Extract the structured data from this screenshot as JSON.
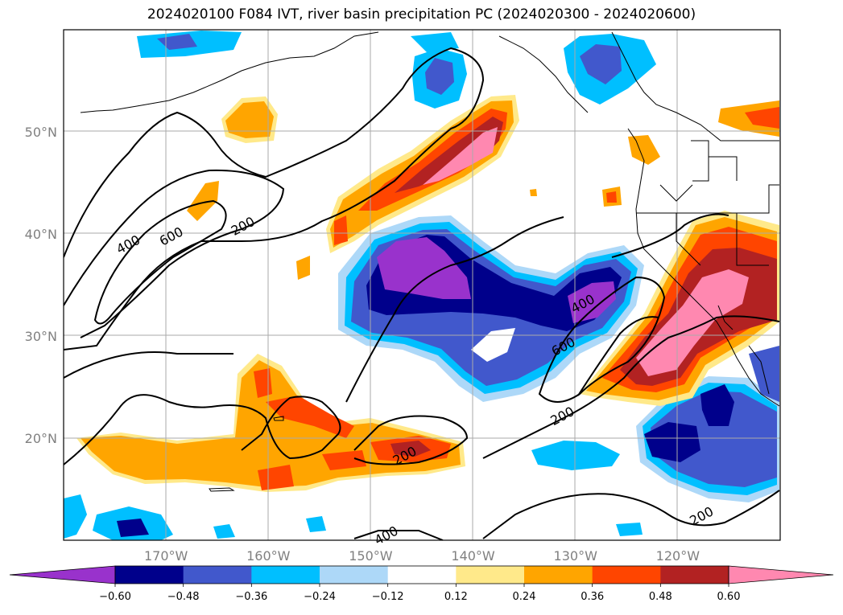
{
  "title": "2024020100 F084 IVT, river basin precipitation PC (2024020300 - 2024020600)",
  "map": {
    "projection": "plate-carree",
    "region": "North Pacific / western North America",
    "lon_range": [
      -180,
      -110
    ],
    "lat_range": [
      10,
      60
    ],
    "gridlines": true,
    "coastlines": true,
    "state_borders": true,
    "lat_ticks": [
      {
        "value": 20,
        "label": "20°N"
      },
      {
        "value": 30,
        "label": "30°N"
      },
      {
        "value": 40,
        "label": "40°N"
      },
      {
        "value": 50,
        "label": "50°N"
      }
    ],
    "lon_ticks": [
      {
        "value": -170,
        "label": "170°W"
      },
      {
        "value": -160,
        "label": "160°W"
      },
      {
        "value": -150,
        "label": "150°W"
      },
      {
        "value": -140,
        "label": "140°W"
      },
      {
        "value": -130,
        "label": "130°W"
      },
      {
        "value": -120,
        "label": "120°W"
      }
    ],
    "contour_labels": [
      {
        "text": "200",
        "lon": -162.5,
        "lat": 40.8
      },
      {
        "text": "400",
        "lon": -173.7,
        "lat": 39
      },
      {
        "text": "600",
        "lon": -169.5,
        "lat": 39.8
      },
      {
        "text": "400",
        "lon": -129.3,
        "lat": 33.2
      },
      {
        "text": "600",
        "lon": -131.2,
        "lat": 29
      },
      {
        "text": "200",
        "lon": -131.3,
        "lat": 22.2
      },
      {
        "text": "200",
        "lon": -146.7,
        "lat": 18.3
      },
      {
        "text": "200",
        "lon": -117.7,
        "lat": 12.4
      },
      {
        "text": "400",
        "lon": -148.5,
        "lat": 10.5
      }
    ]
  },
  "colorbar": {
    "orientation": "horizontal",
    "extend": "both",
    "bins": [
      "#9932cc",
      "#00008b",
      "#4158cc",
      "#00bfff",
      "#add8f8",
      "#ffffff",
      "#ffe98a",
      "#ffa500",
      "#ff4500",
      "#b22222",
      "#ff88b0"
    ],
    "ticks": [
      "−0.60",
      "−0.48",
      "−0.36",
      "−0.24",
      "−0.12",
      "0.12",
      "0.24",
      "0.36",
      "0.48",
      "0.60"
    ]
  },
  "colors": {
    "purple": "#9932cc",
    "navy": "#00008b",
    "royal": "#4158cc",
    "sky": "#00bfff",
    "pale_blue": "#add8f8",
    "pale_yellow": "#ffe98a",
    "orange": "#ffa500",
    "red_orange": "#ff4500",
    "dark_red": "#b22222",
    "pink": "#ff88b0"
  }
}
